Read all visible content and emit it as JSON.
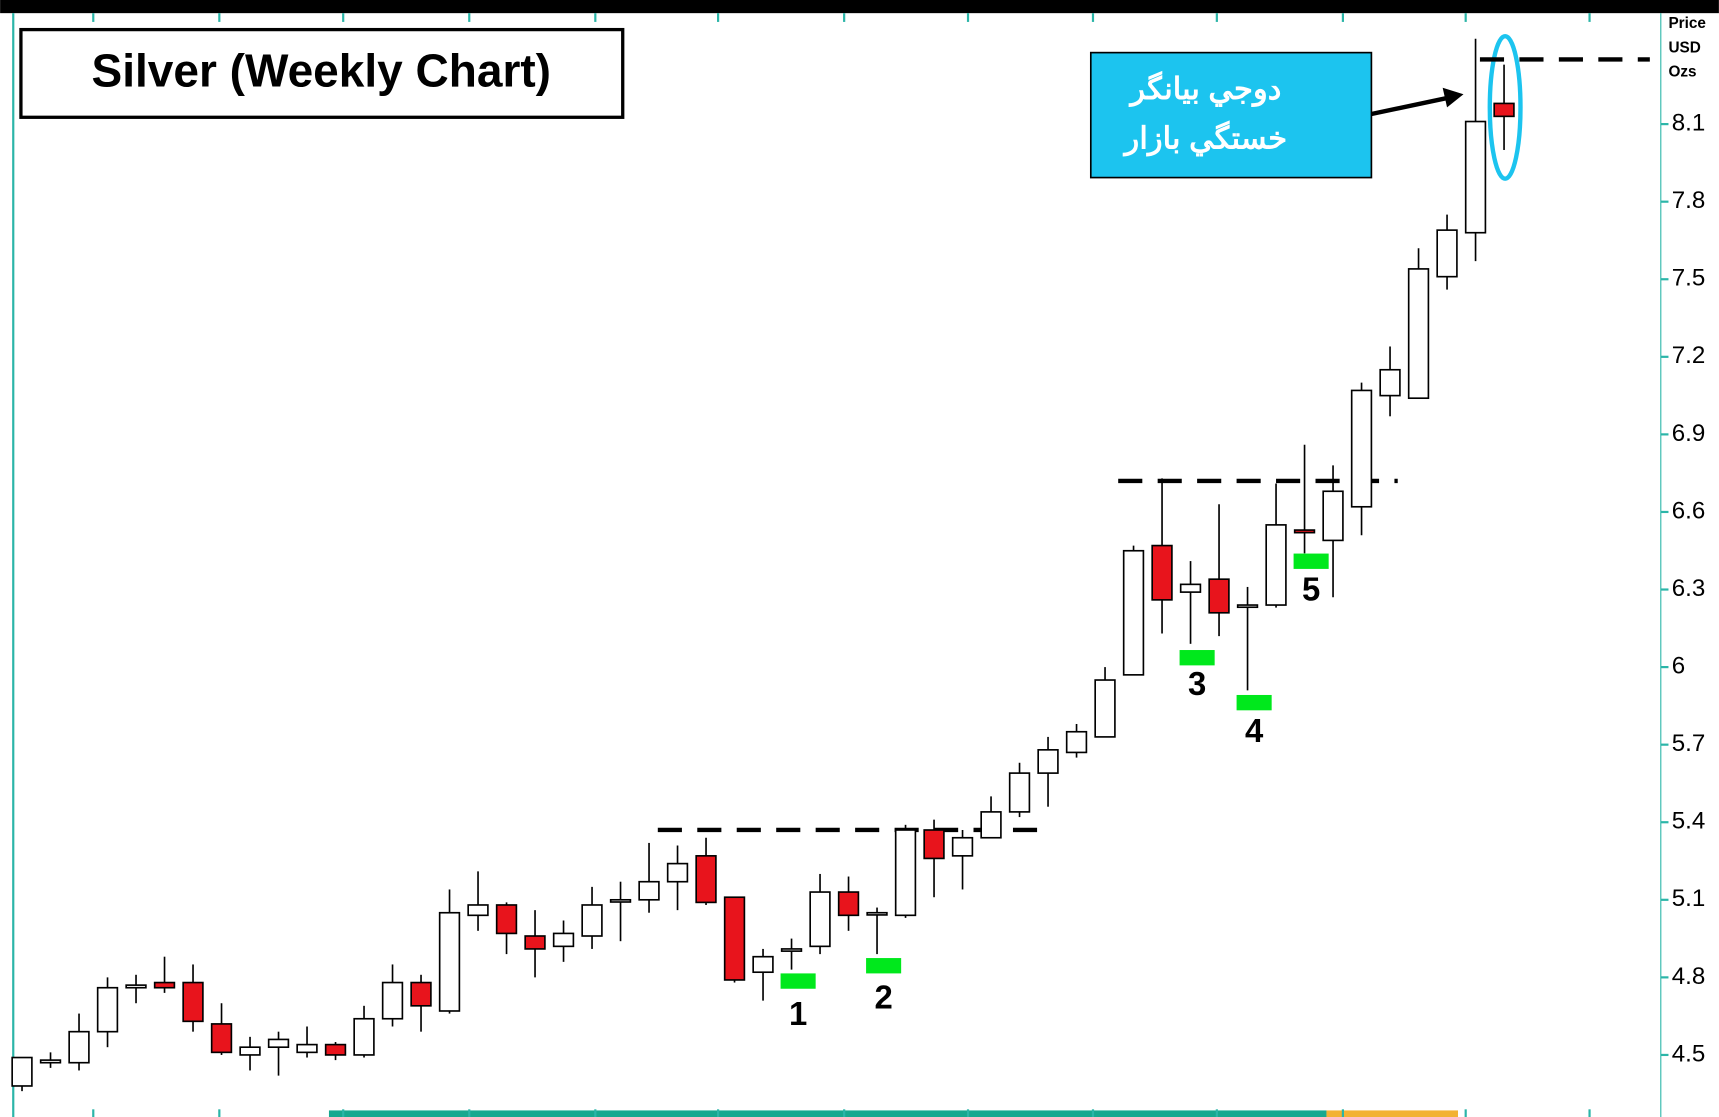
{
  "chart_data": {
    "type": "candlestick",
    "title": "Silver (Weekly Chart)",
    "y_label": [
      "Price",
      "USD",
      "Ozs"
    ],
    "annotation": [
      "دوجي بيانگر",
      "خستگي بازار"
    ],
    "signal_labels": [
      "1",
      "2",
      "3",
      "4",
      "5"
    ],
    "levels": [
      5.37,
      6.72,
      8.35
    ],
    "up_color": "#ffffff",
    "down_color": "#e8141c",
    "signal_color": "#00e81c",
    "categories": [
      null,
      null,
      null,
      null,
      null,
      null,
      null,
      null,
      null,
      null,
      null,
      null,
      null,
      null,
      null,
      null,
      null,
      null,
      null,
      null,
      null,
      null,
      null,
      null,
      null,
      null,
      null,
      null,
      null,
      null,
      null,
      null,
      null,
      null,
      null,
      null,
      null,
      null,
      null,
      null,
      null,
      null,
      null,
      null,
      null,
      null,
      null,
      null,
      null,
      null,
      null,
      null,
      null
    ],
    "open": [
      4.38,
      4.47,
      4.47,
      4.59,
      4.76,
      4.78,
      4.78,
      4.62,
      4.5,
      4.53,
      4.51,
      4.54,
      4.5,
      4.64,
      4.78,
      4.67,
      5.04,
      5.08,
      4.96,
      4.92,
      4.96,
      5.1,
      5.1,
      5.17,
      5.27,
      5.11,
      4.82,
      4.91,
      4.92,
      5.13,
      5.05,
      5.04,
      5.37,
      5.27,
      5.34,
      5.44,
      5.59,
      5.67,
      5.73,
      5.97,
      6.47,
      6.29,
      6.34,
      6.24,
      6.24,
      6.53,
      6.49,
      6.62,
      7.05,
      7.04,
      7.51,
      7.68,
      8.18
    ],
    "high": [
      4.49,
      4.51,
      4.66,
      4.8,
      4.81,
      4.88,
      4.85,
      4.7,
      4.57,
      4.59,
      4.61,
      4.55,
      4.69,
      4.85,
      4.81,
      5.14,
      5.21,
      5.09,
      5.06,
      5.02,
      5.15,
      5.17,
      5.32,
      5.31,
      5.34,
      5.11,
      4.91,
      4.95,
      5.2,
      5.19,
      5.07,
      5.39,
      5.41,
      5.37,
      5.5,
      5.63,
      5.73,
      5.78,
      6.0,
      6.47,
      6.73,
      6.41,
      6.63,
      6.31,
      6.71,
      6.86,
      6.78,
      7.1,
      7.24,
      7.62,
      7.75,
      8.43,
      8.33
    ],
    "low": [
      4.36,
      4.45,
      4.44,
      4.53,
      4.7,
      4.74,
      4.59,
      4.5,
      4.44,
      4.42,
      4.49,
      4.48,
      4.49,
      4.61,
      4.59,
      4.66,
      4.98,
      4.89,
      4.8,
      4.86,
      4.91,
      4.94,
      5.05,
      5.06,
      5.08,
      4.78,
      4.71,
      4.83,
      4.89,
      4.98,
      4.89,
      5.03,
      5.11,
      5.14,
      5.34,
      5.42,
      5.46,
      5.65,
      5.73,
      5.97,
      6.13,
      6.09,
      6.12,
      5.91,
      6.23,
      6.44,
      6.27,
      6.51,
      6.97,
      7.04,
      7.46,
      7.57,
      8.0
    ],
    "close": [
      4.49,
      4.48,
      4.59,
      4.76,
      4.77,
      4.76,
      4.63,
      4.51,
      4.53,
      4.56,
      4.54,
      4.5,
      4.64,
      4.78,
      4.69,
      5.05,
      5.08,
      4.97,
      4.91,
      4.97,
      5.08,
      5.1,
      5.17,
      5.24,
      5.09,
      4.79,
      4.88,
      4.91,
      5.13,
      5.04,
      5.05,
      5.37,
      5.26,
      5.34,
      5.44,
      5.59,
      5.68,
      5.75,
      5.95,
      6.45,
      6.26,
      6.32,
      6.21,
      6.24,
      6.55,
      6.52,
      6.68,
      7.07,
      7.15,
      7.54,
      7.69,
      8.11,
      8.13
    ],
    "ylim": [
      4.26,
      8.58
    ],
    "yticks": [
      4.5,
      4.8,
      5.1,
      5.4,
      5.7,
      6,
      6.3,
      6.6,
      6.9,
      7.2,
      7.5,
      7.8,
      8.1
    ]
  }
}
